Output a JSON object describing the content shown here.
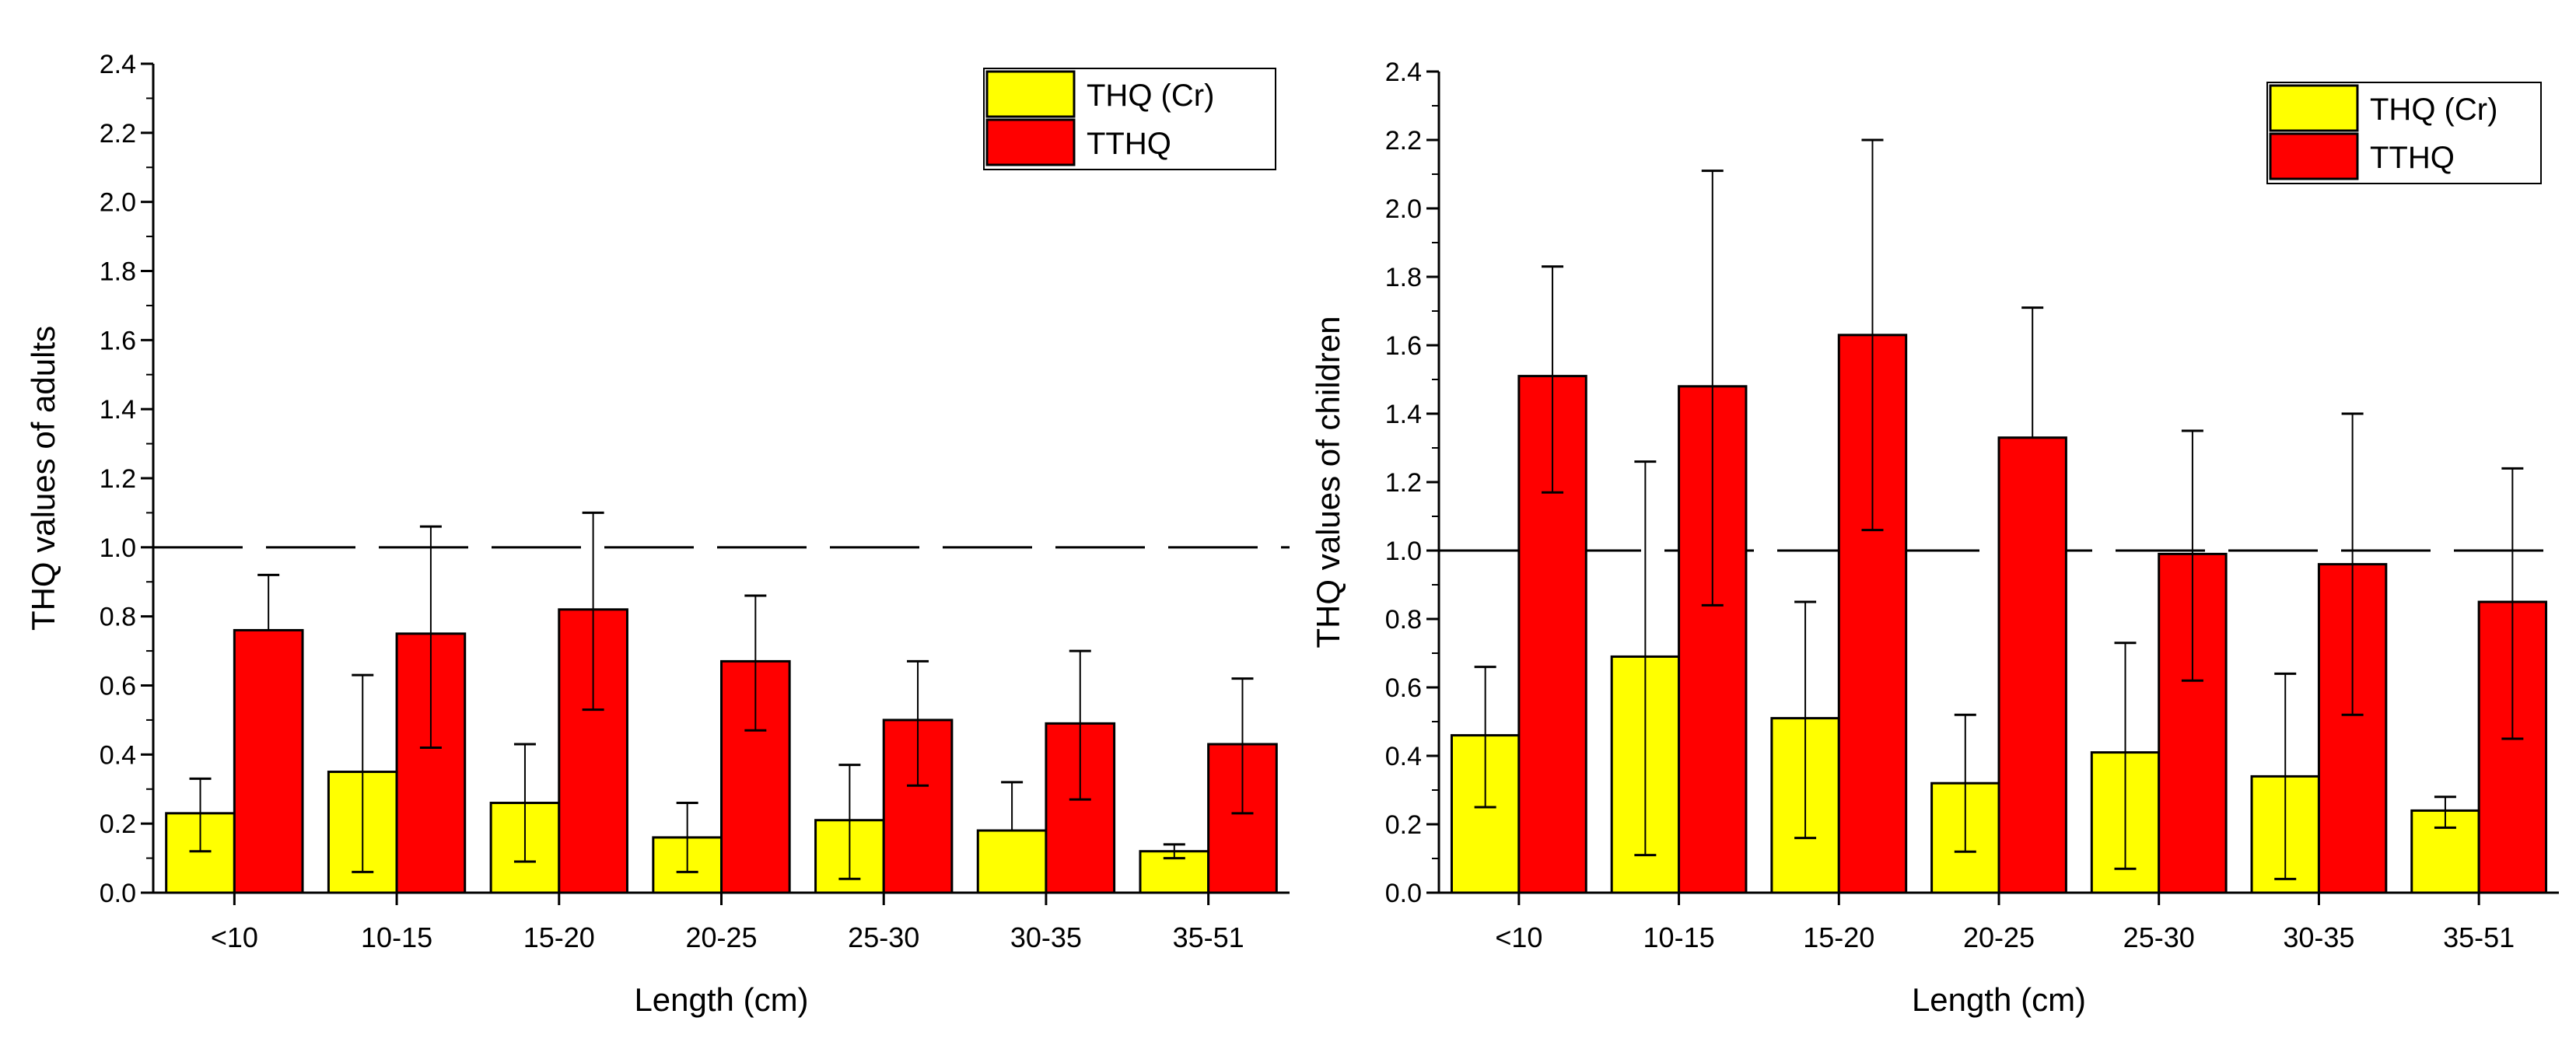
{
  "chart_data": [
    {
      "type": "bar",
      "xlabel": "Length (cm)",
      "ylabel": "THQ values of adults",
      "ylim": [
        0,
        2.4
      ],
      "yticks": [
        "0.0",
        "0.2",
        "0.4",
        "0.6",
        "0.8",
        "1.0",
        "1.2",
        "1.4",
        "1.6",
        "1.8",
        "2.0",
        "2.2",
        "2.4"
      ],
      "categories": [
        "<10",
        "10-15",
        "15-20",
        "20-25",
        "25-30",
        "30-35",
        "35-51"
      ],
      "reference_line": 1.0,
      "legend": "top-right",
      "series": [
        {
          "name": "THQ (Cr)",
          "color": "#ffff00",
          "values": [
            0.23,
            0.35,
            0.26,
            0.16,
            0.21,
            0.18,
            0.12
          ],
          "err_upper": [
            0.33,
            0.63,
            0.43,
            0.26,
            0.37,
            0.32,
            0.14
          ],
          "err_lower": [
            0.12,
            0.06,
            0.09,
            0.06,
            0.04,
            null,
            0.1
          ]
        },
        {
          "name": "TTHQ",
          "color": "#ff0000",
          "values": [
            0.76,
            0.75,
            0.82,
            0.67,
            0.5,
            0.49,
            0.43
          ],
          "err_upper": [
            0.92,
            1.06,
            1.1,
            0.86,
            0.67,
            0.7,
            0.62
          ],
          "err_lower": [
            null,
            0.42,
            0.53,
            0.47,
            0.31,
            0.27,
            0.23
          ]
        }
      ]
    },
    {
      "type": "bar",
      "xlabel": "Length (cm)",
      "ylabel": "THQ values of children",
      "ylim": [
        0,
        2.4
      ],
      "yticks": [
        "0.0",
        "0.2",
        "0.4",
        "0.6",
        "0.8",
        "1.0",
        "1.2",
        "1.4",
        "1.6",
        "1.8",
        "2.0",
        "2.2",
        "2.4"
      ],
      "categories": [
        "<10",
        "10-15",
        "15-20",
        "20-25",
        "25-30",
        "30-35",
        "35-51"
      ],
      "reference_line": 1.0,
      "legend": "top-right",
      "series": [
        {
          "name": "THQ (Cr)",
          "color": "#ffff00",
          "values": [
            0.46,
            0.69,
            0.51,
            0.32,
            0.41,
            0.34,
            0.24
          ],
          "err_upper": [
            0.66,
            1.26,
            0.85,
            0.52,
            0.73,
            0.64,
            0.28
          ],
          "err_lower": [
            0.25,
            0.11,
            0.16,
            0.12,
            0.07,
            0.04,
            0.19
          ]
        },
        {
          "name": "TTHQ",
          "color": "#ff0000",
          "values": [
            1.51,
            1.48,
            1.63,
            1.33,
            0.99,
            0.96,
            0.85
          ],
          "err_upper": [
            1.83,
            2.11,
            2.2,
            1.71,
            1.35,
            1.4,
            1.24
          ],
          "err_lower": [
            1.17,
            0.84,
            1.06,
            null,
            0.62,
            0.52,
            0.45
          ]
        }
      ]
    }
  ]
}
